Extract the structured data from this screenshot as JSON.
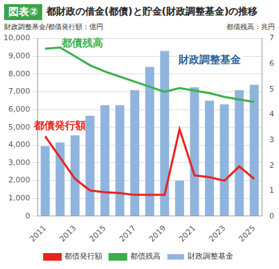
{
  "chart_data": {
    "type": "bar",
    "title_badge": "図表②",
    "title": "都財政の借金(都債)と貯金(財政調整基金)の推移",
    "y_label": "財政調整基金/都債発行額：億円",
    "y2_label": "都債残高：兆円",
    "categories": [
      "2011",
      null,
      "2013",
      null,
      "2015",
      null,
      "2017",
      null,
      "2019",
      null,
      "2021",
      null,
      "2023",
      null,
      "2025"
    ],
    "series": [
      {
        "name": "財政調整基金",
        "type": "bar",
        "color": "#8fb4de",
        "values": [
          3950,
          4150,
          4550,
          5650,
          6250,
          6250,
          7100,
          8400,
          9300,
          2000,
          7250,
          6500,
          6300,
          7100,
          7400
        ]
      },
      {
        "name": "都債発行額",
        "type": "line",
        "color": "#e8231f",
        "values": [
          4500,
          3300,
          2100,
          1450,
          1350,
          1300,
          1200,
          1200,
          1200,
          4900,
          2300,
          2200,
          2000,
          2800,
          2100
        ]
      },
      {
        "name": "都債残高",
        "type": "line",
        "color": "#3bb04a",
        "axis": "y2",
        "values": [
          6.6,
          6.65,
          6.3,
          5.95,
          5.7,
          5.5,
          5.3,
          5.1,
          4.9,
          5.05,
          4.95,
          4.85,
          4.7,
          4.6,
          4.5
        ]
      }
    ],
    "annotations": [
      {
        "text": "都債残高",
        "series": "都債残高"
      },
      {
        "text": "財政調整基金",
        "series": "財政調整基金"
      },
      {
        "text": "都債発行額",
        "series": "都債発行額"
      }
    ],
    "ylim": [
      0,
      10000
    ],
    "yticks": [
      0,
      {
        "value": 1000,
        "label": "1,000"
      },
      {
        "value": 2000,
        "label": "2,000"
      },
      {
        "value": 3000,
        "label": "3,000"
      },
      {
        "value": 4000,
        "label": "4,000"
      },
      {
        "value": 5000,
        "label": "5,000"
      },
      {
        "value": 6000,
        "label": "6,000"
      },
      {
        "value": 7000,
        "label": "7,000"
      },
      {
        "value": 8000,
        "label": "8,000"
      },
      {
        "value": 9000,
        "label": "9,000"
      },
      {
        "value": 10000,
        "label": "10,000"
      }
    ],
    "y2lim": [
      0,
      7
    ],
    "y2ticks": [
      0,
      1,
      2,
      3,
      4,
      5,
      6,
      7
    ],
    "grid": true,
    "legend": "bottom"
  }
}
